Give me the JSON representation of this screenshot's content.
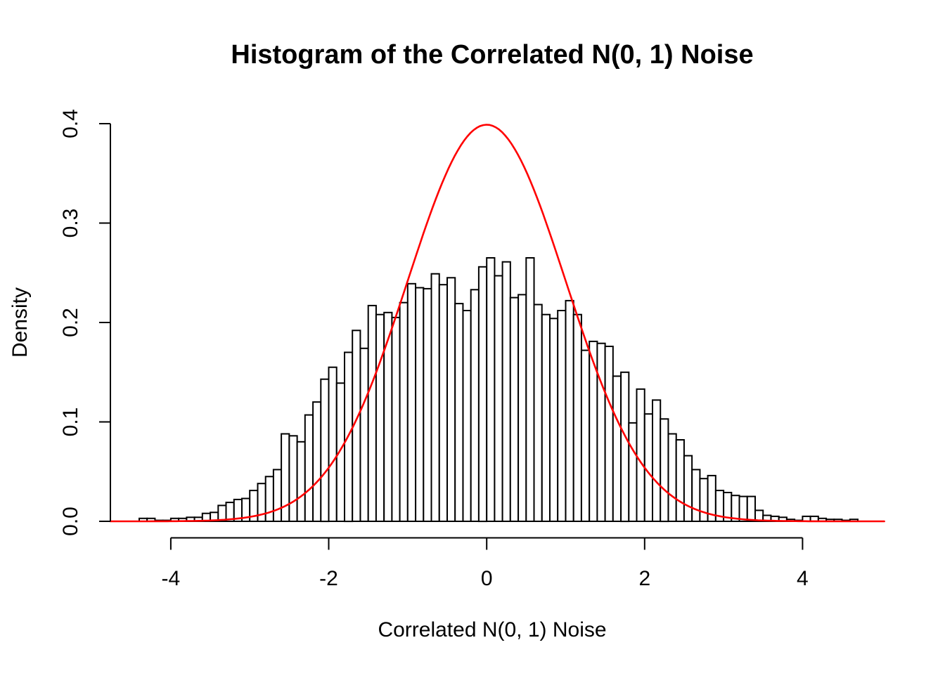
{
  "title": "Histogram of the Correlated N(0, 1) Noise",
  "chart_data": {
    "type": "bar",
    "subtype": "histogram",
    "title": "Histogram of the Correlated N(0, 1) Noise",
    "xlabel": "Correlated N(0, 1) Noise",
    "ylabel": "Density",
    "bin_start": -4.4,
    "bin_width": 0.1,
    "densities": [
      0.003,
      0.003,
      0.001,
      0.001,
      0.003,
      0.003,
      0.004,
      0.004,
      0.008,
      0.009,
      0.016,
      0.019,
      0.022,
      0.023,
      0.031,
      0.038,
      0.045,
      0.052,
      0.088,
      0.086,
      0.08,
      0.107,
      0.12,
      0.143,
      0.155,
      0.139,
      0.17,
      0.192,
      0.174,
      0.217,
      0.208,
      0.21,
      0.205,
      0.22,
      0.239,
      0.235,
      0.234,
      0.249,
      0.238,
      0.245,
      0.219,
      0.212,
      0.233,
      0.256,
      0.265,
      0.247,
      0.261,
      0.225,
      0.228,
      0.265,
      0.218,
      0.208,
      0.204,
      0.212,
      0.222,
      0.208,
      0.172,
      0.181,
      0.179,
      0.176,
      0.146,
      0.15,
      0.099,
      0.133,
      0.108,
      0.122,
      0.103,
      0.088,
      0.082,
      0.066,
      0.052,
      0.043,
      0.046,
      0.031,
      0.029,
      0.026,
      0.025,
      0.025,
      0.011,
      0.006,
      0.005,
      0.004,
      0.002,
      0.001,
      0.005,
      0.005,
      0.003,
      0.002,
      0.002,
      0.001,
      0.002
    ],
    "x_ticks": [
      -4,
      -2,
      0,
      2,
      4
    ],
    "x_tick_labels": [
      "-4",
      "-2",
      "0",
      "2",
      "4"
    ],
    "y_ticks": [
      0,
      0.1,
      0.2,
      0.3,
      0.4
    ],
    "y_tick_labels": [
      "0.0",
      "0.1",
      "0.2",
      "0.3",
      "0.4"
    ],
    "xlim": [
      -4.765,
      5.065
    ],
    "ylim": [
      -0.0166,
      0.4166
    ],
    "x_axis_span": [
      -4,
      4
    ],
    "y_axis_span": [
      0,
      0.4
    ],
    "grid": false,
    "legend": "none",
    "bar_fill": "#ffffff",
    "bar_border": "#000000",
    "axis_color": "#000000",
    "overlay_curve": {
      "name": "standard-normal-density",
      "formula": "y = exp(-x^2/2) / sqrt(2*pi)",
      "peak": 0.3989,
      "color": "#ff0000"
    }
  }
}
